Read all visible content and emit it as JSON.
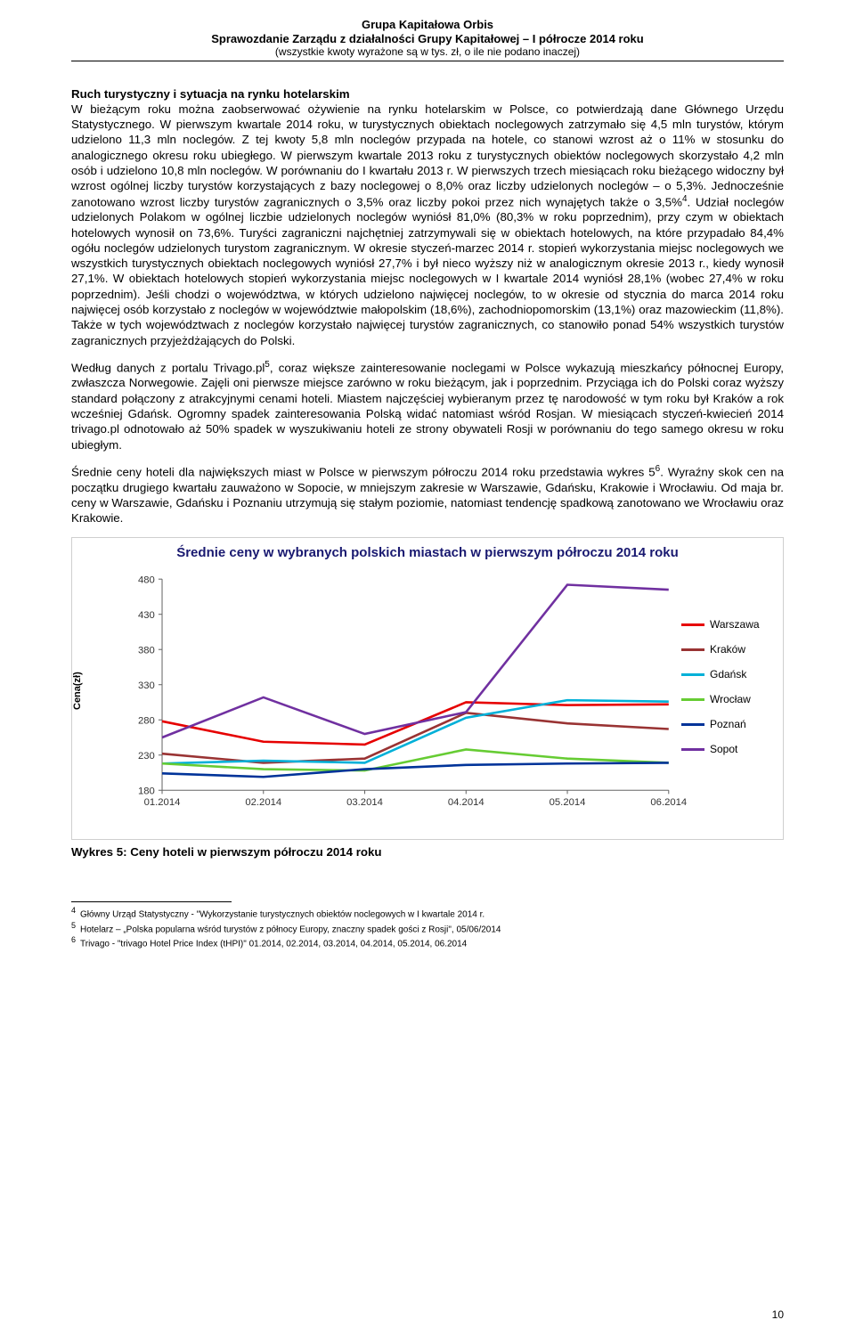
{
  "header": {
    "line1": "Grupa Kapitałowa Orbis",
    "line2": "Sprawozdanie Zarządu z działalności Grupy Kapitałowej – I półrocze 2014 roku",
    "line3": "(wszystkie kwoty wyrażone są w tys. zł, o ile nie podano inaczej)"
  },
  "section_heading": "Ruch turystyczny i sytuacja na rynku hotelarskim",
  "para1": "W bieżącym roku można zaobserwować ożywienie na rynku hotelarskim w Polsce, co potwierdzają dane Głównego Urzędu Statystycznego. W pierwszym kwartale 2014 roku, w turystycznych obiektach noclegowych zatrzymało się 4,5 mln turystów, którym udzielono 11,3 mln noclegów. Z tej kwoty 5,8 mln noclegów przypada na hotele, co stanowi wzrost aż o 11% w stosunku do analogicznego okresu roku ubiegłego. W pierwszym kwartale 2013 roku z turystycznych obiektów noclegowych skorzystało 4,2 mln osób i udzielono 10,8 mln noclegów. W porównaniu do I kwartału 2013 r. W pierwszych trzech miesiącach roku bieżącego widoczny był wzrost ogólnej liczby turystów korzystających z bazy noclegowej o 8,0% oraz liczby udzielonych noclegów – o 5,3%. Jednocześnie zanotowano wzrost liczby turystów zagranicznych o 3,5% oraz liczby pokoi przez nich wynajętych także o 3,5%",
  "para1_sup": "4",
  "para1_tail": ".",
  "para2": "Udział noclegów udzielonych Polakom w ogólnej liczbie udzielonych noclegów wyniósł 81,0% (80,3% w roku poprzednim), przy czym w obiektach hotelowych wynosił on 73,6%. Turyści zagraniczni najchętniej zatrzymywali się w obiektach hotelowych, na które przypadało 84,4% ogółu noclegów udzielonych turystom zagranicznym.",
  "para3": "W okresie styczeń-marzec 2014 r. stopień wykorzystania miejsc noclegowych we wszystkich turystycznych obiektach noclegowych wyniósł 27,7% i był nieco wyższy niż w analogicznym okresie 2013 r., kiedy wynosił 27,1%. W obiektach hotelowych stopień wykorzystania miejsc noclegowych w I kwartale 2014 wyniósł 28,1% (wobec 27,4% w roku poprzednim).",
  "para4": "Jeśli chodzi o województwa, w których udzielono najwięcej noclegów, to w okresie od stycznia do marca 2014 roku najwięcej osób korzystało z noclegów w województwie małopolskim (18,6%), zachodniopomorskim (13,1%) oraz mazowieckim (11,8%). Także w tych województwach z noclegów korzystało najwięcej turystów zagranicznych, co stanowiło ponad 54% wszystkich turystów zagranicznych przyjeżdżających do Polski.",
  "para5a": "Według danych z portalu Trivago.pl",
  "para5_sup": "5",
  "para5b": ", coraz większe zainteresowanie noclegami w Polsce wykazują mieszkańcy północnej Europy, zwłaszcza Norwegowie. Zajęli oni pierwsze miejsce zarówno w roku bieżącym, jak i poprzednim. Przyciąga ich do Polski coraz wyższy standard połączony z atrakcyjnymi cenami hoteli. Miastem najczęściej wybieranym przez tę narodowość w tym roku był Kraków a rok wcześniej Gdańsk. Ogromny spadek zainteresowania Polską widać natomiast wśród Rosjan. W miesiącach styczeń-kwiecień 2014 trivago.pl odnotowało aż 50% spadek w wyszukiwaniu hoteli ze strony obywateli Rosji w porównaniu do tego samego okresu w roku ubiegłym.",
  "para6a": "Średnie ceny hoteli dla największych miast w Polsce w pierwszym półroczu 2014 roku przedstawia wykres 5",
  "para6_sup": "6",
  "para6b": ". Wyraźny skok cen na początku drugiego kwartału zauważono w Sopocie, w mniejszym zakresie w Warszawie, Gdańsku, Krakowie i Wrocławiu. Od maja br. ceny w Warszawie, Gdańsku i Poznaniu utrzymują się stałym poziomie, natomiast tendencję spadkową zanotowano we Wrocławiu oraz Krakowie.",
  "chart": {
    "title": "Średnie ceny w wybranych polskich miastach w pierwszym półroczu 2014 roku",
    "ylabel": "Cena(zł)",
    "ylim": [
      180,
      480
    ],
    "ytick_step": 50,
    "yticks": [
      180,
      230,
      280,
      330,
      380,
      430,
      480
    ],
    "x_categories": [
      "01.2014",
      "02.2014",
      "03.2014",
      "04.2014",
      "05.2014",
      "06.2014"
    ],
    "background_color": "#ffffff",
    "border_color": "#cfcfcf",
    "axis_color": "#666666",
    "tick_color": "#333333",
    "tick_fontsize": 11,
    "title_color": "#191970",
    "title_fontsize": 15,
    "line_width": 2.5,
    "series": [
      {
        "name": "Warszawa",
        "color": "#e60000",
        "values": [
          278,
          249,
          245,
          305,
          301,
          302
        ]
      },
      {
        "name": "Kraków",
        "color": "#993333",
        "values": [
          232,
          219,
          225,
          290,
          275,
          267
        ]
      },
      {
        "name": "Gdańsk",
        "color": "#00b0d8",
        "values": [
          218,
          222,
          219,
          283,
          308,
          306
        ]
      },
      {
        "name": "Wrocław",
        "color": "#66cc33",
        "values": [
          218,
          210,
          208,
          238,
          225,
          219
        ]
      },
      {
        "name": "Poznań",
        "color": "#003399",
        "values": [
          204,
          199,
          210,
          216,
          218,
          219
        ]
      },
      {
        "name": "Sopot",
        "color": "#7030a0",
        "values": [
          255,
          312,
          260,
          291,
          472,
          465
        ]
      }
    ]
  },
  "caption": "Wykres 5: Ceny hoteli w pierwszym półroczu 2014 roku",
  "footnotes": {
    "f4": "Główny Urząd Statystyczny - \"Wykorzystanie turystycznych obiektów noclegowych w I kwartale 2014 r.",
    "f5": "Hotelarz – „Polska popularna wśród turystów z północy Europy, znaczny spadek gości z Rosji\", 05/06/2014",
    "f6": "Trivago -  \"trivago Hotel Price Index (tHPI)\" 01.2014, 02.2014, 03.2014, 04.2014, 05.2014, 06.2014"
  },
  "page_number": "10"
}
